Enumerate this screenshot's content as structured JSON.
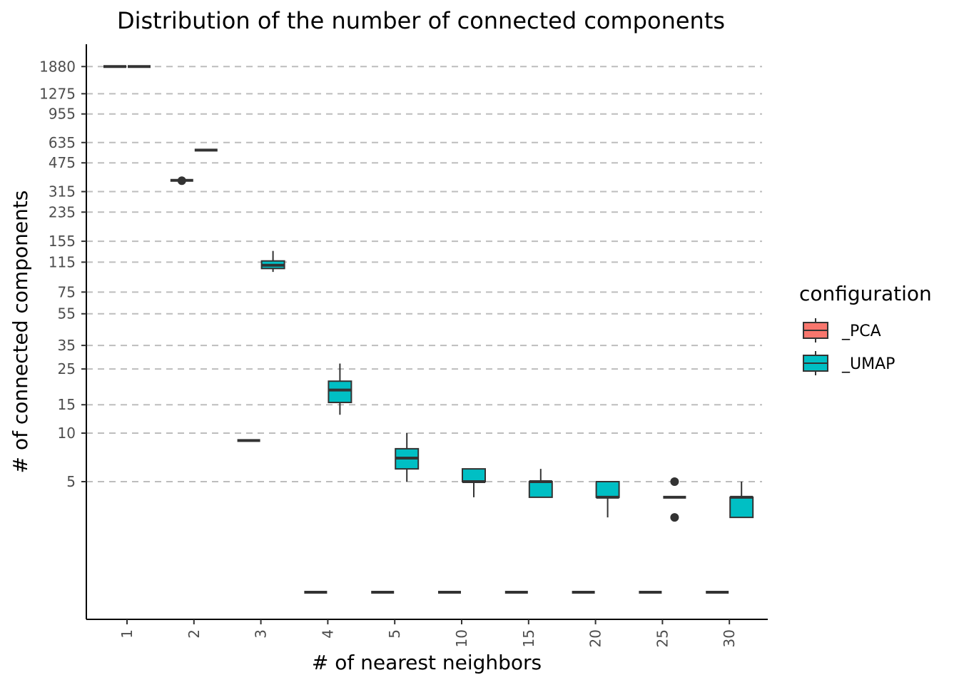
{
  "chart_data": {
    "type": "boxplot",
    "title": "Distribution of the number of connected components",
    "xlabel": "# of nearest neighbors",
    "ylabel": "# of connected components",
    "y_scale": "log",
    "y_ticks": [
      5,
      10,
      15,
      25,
      35,
      55,
      75,
      115,
      155,
      235,
      315,
      475,
      635,
      955,
      1275,
      1880
    ],
    "x_categories": [
      "1",
      "2",
      "3",
      "4",
      "5",
      "10",
      "15",
      "20",
      "25",
      "30"
    ],
    "grid": "horizontal dashed",
    "legend": {
      "title": "configuration",
      "position": "right",
      "entries": [
        {
          "label": "_PCA",
          "color": "#F8766D"
        },
        {
          "label": "_UMAP",
          "color": "#00BFC4"
        }
      ]
    },
    "series": [
      {
        "name": "_PCA",
        "color": "#F8766D",
        "boxes": [
          {
            "x": "1",
            "min": 1880,
            "q1": 1880,
            "median": 1880,
            "q3": 1880,
            "max": 1880,
            "outliers": []
          },
          {
            "x": "2",
            "min": 370,
            "q1": 370,
            "median": 370,
            "q3": 370,
            "max": 370,
            "outliers": [
              368
            ]
          },
          {
            "x": "3",
            "min": 9,
            "q1": 9,
            "median": 9,
            "q3": 9,
            "max": 9,
            "outliers": []
          },
          {
            "x": "4",
            "min": 1,
            "q1": 1,
            "median": 1,
            "q3": 1,
            "max": 1,
            "outliers": []
          },
          {
            "x": "5",
            "min": 1,
            "q1": 1,
            "median": 1,
            "q3": 1,
            "max": 1,
            "outliers": []
          },
          {
            "x": "10",
            "min": 1,
            "q1": 1,
            "median": 1,
            "q3": 1,
            "max": 1,
            "outliers": []
          },
          {
            "x": "15",
            "min": 1,
            "q1": 1,
            "median": 1,
            "q3": 1,
            "max": 1,
            "outliers": []
          },
          {
            "x": "20",
            "min": 1,
            "q1": 1,
            "median": 1,
            "q3": 1,
            "max": 1,
            "outliers": []
          },
          {
            "x": "25",
            "min": 1,
            "q1": 1,
            "median": 1,
            "q3": 1,
            "max": 1,
            "outliers": []
          },
          {
            "x": "30",
            "min": 1,
            "q1": 1,
            "median": 1,
            "q3": 1,
            "max": 1,
            "outliers": []
          }
        ]
      },
      {
        "name": "_UMAP",
        "color": "#00BFC4",
        "boxes": [
          {
            "x": "1",
            "min": 1880,
            "q1": 1880,
            "median": 1880,
            "q3": 1880,
            "max": 1880,
            "outliers": []
          },
          {
            "x": "2",
            "min": 570,
            "q1": 570,
            "median": 570,
            "q3": 570,
            "max": 570,
            "outliers": []
          },
          {
            "x": "3",
            "min": 100,
            "q1": 105,
            "median": 110,
            "q3": 117,
            "max": 135,
            "outliers": []
          },
          {
            "x": "4",
            "min": 13,
            "q1": 15.5,
            "median": 18.5,
            "q3": 21,
            "max": 27,
            "outliers": []
          },
          {
            "x": "5",
            "min": 5,
            "q1": 6,
            "median": 7,
            "q3": 8,
            "max": 10,
            "outliers": []
          },
          {
            "x": "10",
            "min": 4,
            "q1": 5,
            "median": 5,
            "q3": 6,
            "max": 6,
            "outliers": []
          },
          {
            "x": "15",
            "min": 4,
            "q1": 4,
            "median": 5,
            "q3": 5,
            "max": 6,
            "outliers": []
          },
          {
            "x": "20",
            "min": 3,
            "q1": 4,
            "median": 4,
            "q3": 5,
            "max": 5,
            "outliers": []
          },
          {
            "x": "25",
            "min": 4,
            "q1": 4,
            "median": 4,
            "q3": 4,
            "max": 4,
            "outliers": [
              5,
              3
            ]
          },
          {
            "x": "30",
            "min": 3,
            "q1": 3,
            "median": 4,
            "q3": 4,
            "max": 5,
            "outliers": []
          }
        ]
      }
    ]
  }
}
